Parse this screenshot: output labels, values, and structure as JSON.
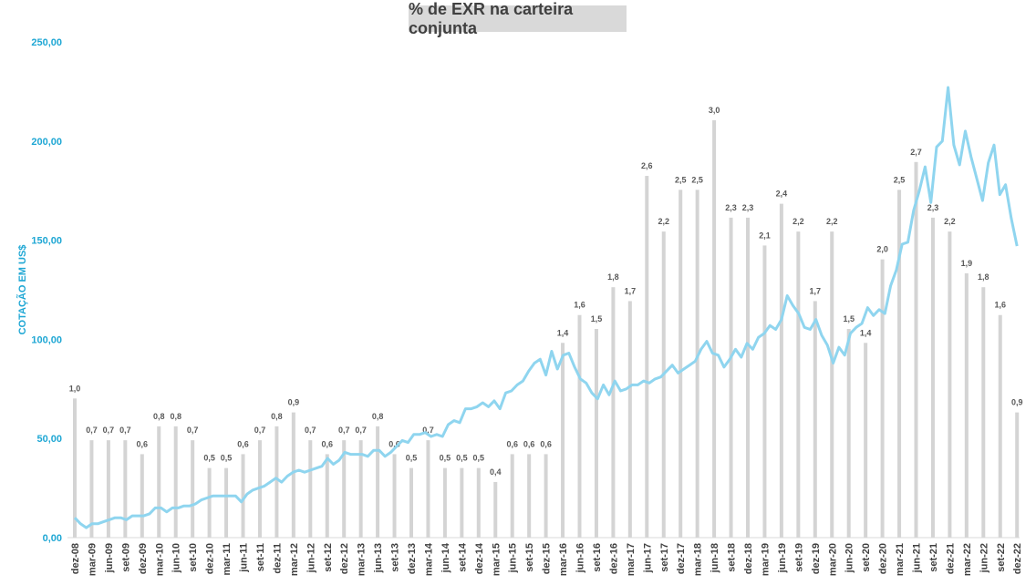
{
  "chart_data": {
    "type": "bar+line",
    "title": "% de EXR na carteira conjunta",
    "ylabel": "COTAÇÃO EM US$",
    "ylim": [
      0,
      250
    ],
    "y_ticks": [
      "0,00",
      "50,00",
      "100,00",
      "150,00",
      "200,00",
      "250,00"
    ],
    "x_tick_labels": [
      "dez-08",
      "mar-09",
      "jun-09",
      "set-09",
      "dez-09",
      "mar-10",
      "jun-10",
      "set-10",
      "dez-10",
      "mar-11",
      "jun-11",
      "set-11",
      "dez-11",
      "mar-12",
      "jun-12",
      "set-12",
      "dez-12",
      "mar-13",
      "jun-13",
      "set-13",
      "dez-13",
      "mar-14",
      "jun-14",
      "set-14",
      "dez-14",
      "mar-15",
      "jun-15",
      "set-15",
      "dez-15",
      "mar-16",
      "jun-16",
      "set-16",
      "dez-16",
      "mar-17",
      "jun-17",
      "set-17",
      "dez-17",
      "mar-18",
      "jun-18",
      "set-18",
      "dez-18",
      "mar-19",
      "jun-19",
      "set-19",
      "dez-19",
      "mar-20",
      "jun-20",
      "set-20",
      "dez-20",
      "mar-21",
      "jun-21",
      "set-21",
      "dez-21",
      "mar-22",
      "jun-22",
      "set-22",
      "dez-22"
    ],
    "bar_labels": [
      "1,0",
      "0,7",
      "0,7",
      "0,7",
      "0,6",
      "0,8",
      "0,8",
      "0,7",
      "0,5",
      "0,5",
      "0,6",
      "0,7",
      "0,8",
      "0,9",
      "0,7",
      "0,6",
      "0,7",
      "0,7",
      "0,8",
      "0,6",
      "0,5",
      "0,7",
      "0,5",
      "0,5",
      "0,5",
      "0,4",
      "0,6",
      "0,6",
      "0,6",
      "1,4",
      "1,6",
      "1,5",
      "1,8",
      "1,7",
      "2,6",
      "2,2",
      "2,5",
      "2,5",
      "3,0",
      "2,3",
      "2,3",
      "2,1",
      "2,4",
      "2,2",
      "1,7",
      "2,2",
      "1,5",
      "1,4",
      "2,0",
      "2,5",
      "2,7",
      "2,3",
      "2,2",
      "1,9",
      "1,8",
      "1,6",
      "0,9"
    ],
    "bar_values": [
      1.0,
      0.7,
      0.7,
      0.7,
      0.6,
      0.8,
      0.8,
      0.7,
      0.5,
      0.5,
      0.6,
      0.7,
      0.8,
      0.9,
      0.7,
      0.6,
      0.7,
      0.7,
      0.8,
      0.6,
      0.5,
      0.7,
      0.5,
      0.5,
      0.5,
      0.4,
      0.6,
      0.6,
      0.6,
      1.4,
      1.6,
      1.5,
      1.8,
      1.7,
      2.6,
      2.2,
      2.5,
      2.5,
      3.0,
      2.3,
      2.3,
      2.1,
      2.4,
      2.2,
      1.7,
      2.2,
      1.5,
      1.4,
      2.0,
      2.5,
      2.7,
      2.3,
      2.2,
      1.9,
      1.8,
      1.6,
      0.9
    ],
    "bar_scale_max": 3.0,
    "line_values": [
      10,
      7,
      5,
      7,
      7,
      8,
      9,
      10,
      10,
      9,
      11,
      11,
      11,
      12,
      15,
      15,
      13,
      15,
      15,
      16,
      16,
      17,
      19,
      20,
      21,
      21,
      21,
      21,
      21,
      18,
      22,
      24,
      25,
      26,
      28,
      30,
      28,
      31,
      33,
      34,
      33,
      34,
      35,
      36,
      40,
      37,
      39,
      43,
      42,
      42,
      42,
      41,
      44,
      44,
      41,
      43,
      46,
      49,
      48,
      52,
      52,
      53,
      51,
      52,
      51,
      57,
      59,
      58,
      65,
      65,
      66,
      68,
      66,
      69,
      65,
      73,
      74,
      77,
      79,
      84,
      88,
      90,
      82,
      94,
      85,
      92,
      93,
      86,
      80,
      78,
      73,
      70,
      77,
      72,
      79,
      74,
      75,
      77,
      77,
      79,
      78,
      80,
      81,
      84,
      87,
      83,
      85,
      87,
      89,
      95,
      99,
      93,
      92,
      86,
      90,
      95,
      91,
      98,
      95,
      101,
      103,
      107,
      105,
      110,
      122,
      117,
      113,
      106,
      105,
      110,
      102,
      97,
      88,
      96,
      92,
      103,
      106,
      108,
      116,
      112,
      115,
      113,
      127,
      135,
      148,
      149,
      165,
      175,
      187,
      169,
      197,
      200,
      227,
      198,
      188,
      205,
      192,
      181,
      170,
      189,
      198,
      173,
      178,
      161,
      147
    ],
    "bar_color": "#d4d4d4",
    "line_color": "#8fd5ef",
    "axis_label_color": "#1fa7d4"
  }
}
